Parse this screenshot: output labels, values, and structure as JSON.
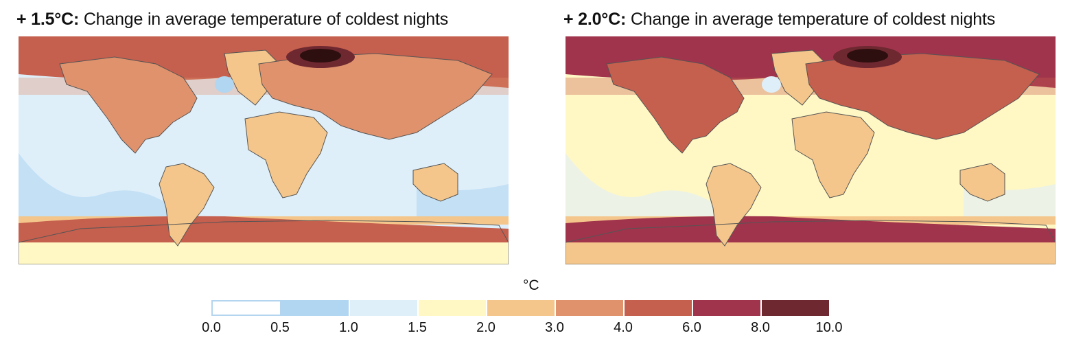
{
  "panels": [
    {
      "id": "left",
      "title_bold": "+ 1.5°C:",
      "title_rest": " Change in average temperature of coldest nights",
      "scenario_warming_c": 1.5,
      "description": "Warming of coldest nights; strongest over Arctic/Siberia, weakest over Pacific and Southern oceans",
      "zonal_bands": [
        {
          "region": "arctic",
          "class": "4.0-6.0"
        },
        {
          "region": "siberia-core",
          "class": "8.0-10.0"
        },
        {
          "region": "northern-mid-latitude-land",
          "class": "3.0-4.0"
        },
        {
          "region": "tropics-ocean",
          "class": "1.0-1.5"
        },
        {
          "region": "tropics-land",
          "class": "2.0-3.0"
        },
        {
          "region": "southern-ocean-ocean",
          "class": "0.5-1.0"
        },
        {
          "region": "southern-ocean-belt",
          "class": "4.0-6.0"
        },
        {
          "region": "antarctica",
          "class": "1.5-2.0"
        }
      ]
    },
    {
      "id": "right",
      "title_bold": "+ 2.0°C:",
      "title_rest": " Change in average temperature of coldest nights",
      "scenario_warming_c": 2.0,
      "description": "Warming of coldest nights; larger everywhere than at 1.5°C",
      "zonal_bands": [
        {
          "region": "arctic",
          "class": "6.0-8.0"
        },
        {
          "region": "siberia-core",
          "class": "8.0-10.0"
        },
        {
          "region": "northern-mid-latitude-land",
          "class": "4.0-6.0"
        },
        {
          "region": "tropics-ocean",
          "class": "1.5-2.0"
        },
        {
          "region": "tropics-land",
          "class": "2.0-3.0"
        },
        {
          "region": "southern-ocean-ocean",
          "class": "1.0-1.5"
        },
        {
          "region": "southern-ocean-belt",
          "class": "6.0-8.0"
        },
        {
          "region": "antarctica",
          "class": "2.0-3.0"
        }
      ]
    }
  ],
  "colorbar": {
    "unit": "°C",
    "bins": [
      {
        "from": 0.0,
        "to": 0.5,
        "color": "#ffffff"
      },
      {
        "from": 0.5,
        "to": 1.0,
        "color": "#b0d6f1"
      },
      {
        "from": 1.0,
        "to": 1.5,
        "color": "#dfeffa"
      },
      {
        "from": 1.5,
        "to": 2.0,
        "color": "#fff8c5"
      },
      {
        "from": 2.0,
        "to": 3.0,
        "color": "#f4c68b"
      },
      {
        "from": 3.0,
        "to": 4.0,
        "color": "#e0926c"
      },
      {
        "from": 4.0,
        "to": 6.0,
        "color": "#c55f4e"
      },
      {
        "from": 6.0,
        "to": 8.0,
        "color": "#a0344c"
      },
      {
        "from": 8.0,
        "to": 10.0,
        "color": "#6e2830"
      }
    ],
    "tick_labels": [
      "0.0",
      "0.5",
      "1.0",
      "1.5",
      "2.0",
      "3.0",
      "4.0",
      "6.0",
      "8.0",
      "10.0"
    ]
  },
  "extra_colors": {
    "core_max": "#2e0f0f",
    "coastline": "#555555"
  }
}
